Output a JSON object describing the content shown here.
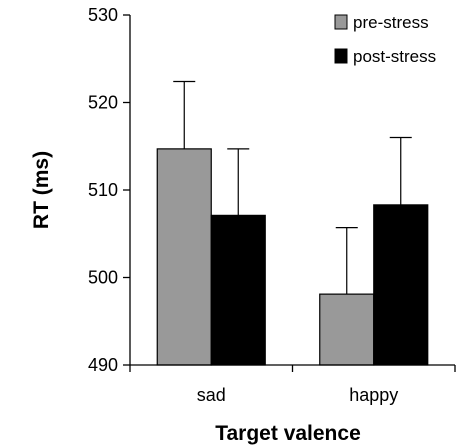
{
  "chart_data": {
    "type": "bar",
    "categories": [
      "sad",
      "happy"
    ],
    "series": [
      {
        "name": "pre-stress",
        "color": "#999999",
        "values": [
          514.7,
          498.1
        ],
        "errors": [
          7.7,
          7.6
        ]
      },
      {
        "name": "post-stress",
        "color": "#000000",
        "values": [
          507.1,
          508.3
        ],
        "errors": [
          7.6,
          7.7
        ]
      }
    ],
    "title": "",
    "xlabel": "Target valence",
    "ylabel": "RT (ms)",
    "ylim": [
      490,
      530
    ],
    "yticks": [
      490,
      500,
      510,
      520,
      530
    ],
    "ytick_labels": [
      "490",
      "500",
      "510",
      "520",
      "530"
    ],
    "error_bars": "upper",
    "grid": false,
    "legend": "top-right"
  }
}
